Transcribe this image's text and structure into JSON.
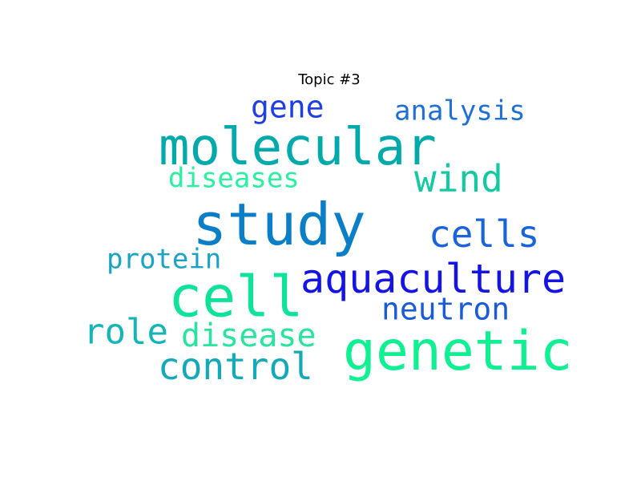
{
  "title": "Topic #3",
  "words": [
    {
      "text": "molecular",
      "color": "#00aaaa"
    },
    {
      "text": "gene",
      "color": "#1f3fe0"
    },
    {
      "text": "analysis",
      "color": "#1e6fd6"
    },
    {
      "text": "wind",
      "color": "#14c8a0"
    },
    {
      "text": "diseases",
      "color": "#2af0a0"
    },
    {
      "text": "study",
      "color": "#0a7ec6"
    },
    {
      "text": "cells",
      "color": "#1b63d8"
    },
    {
      "text": "protein",
      "color": "#1aa3c4"
    },
    {
      "text": "cell",
      "color": "#0fe39a"
    },
    {
      "text": "aquaculture",
      "color": "#1414e6"
    },
    {
      "text": "neutron",
      "color": "#1b5ad9"
    },
    {
      "text": "role",
      "color": "#15b5b6"
    },
    {
      "text": "disease",
      "color": "#2ae39e"
    },
    {
      "text": "genetic",
      "color": "#0ff093"
    },
    {
      "text": "control",
      "color": "#14a9b6"
    }
  ]
}
